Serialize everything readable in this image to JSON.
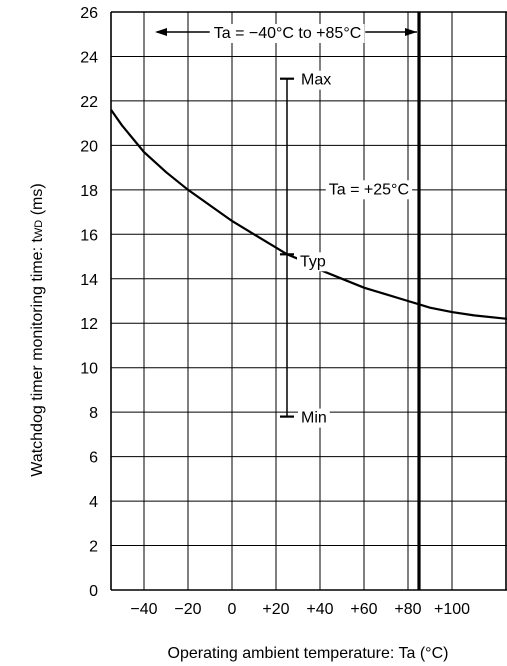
{
  "chart_data": {
    "type": "line",
    "title": "",
    "xlabel": "Operating ambient temperature: Ta (°C)",
    "ylabel_main": "Watchdog timer monitoring time: t",
    "ylabel_sub": "WD",
    "ylabel_unit": " (ms)",
    "xlim": [
      -55,
      125
    ],
    "ylim": [
      0,
      26
    ],
    "grid": true,
    "x_ticks": [
      {
        "value": -40,
        "label": "−40"
      },
      {
        "value": -20,
        "label": "−20"
      },
      {
        "value": 0,
        "label": "0"
      },
      {
        "value": 20,
        "label": "+20"
      },
      {
        "value": 40,
        "label": "+40"
      },
      {
        "value": 60,
        "label": "+60"
      },
      {
        "value": 80,
        "label": "+80"
      },
      {
        "value": 100,
        "label": "+100"
      }
    ],
    "y_ticks": [
      {
        "value": 0,
        "label": "0"
      },
      {
        "value": 2,
        "label": "2"
      },
      {
        "value": 4,
        "label": "4"
      },
      {
        "value": 6,
        "label": "6"
      },
      {
        "value": 8,
        "label": "8"
      },
      {
        "value": 10,
        "label": "10"
      },
      {
        "value": 12,
        "label": "12"
      },
      {
        "value": 14,
        "label": "14"
      },
      {
        "value": 16,
        "label": "16"
      },
      {
        "value": 18,
        "label": "18"
      },
      {
        "value": 20,
        "label": "20"
      },
      {
        "value": 22,
        "label": "22"
      },
      {
        "value": 24,
        "label": "24"
      },
      {
        "value": 26,
        "label": "26"
      }
    ],
    "series": [
      {
        "x": [
          -55,
          -50,
          -40,
          -30,
          -20,
          -10,
          0,
          10,
          20,
          25,
          30,
          40,
          50,
          60,
          70,
          80,
          85,
          90,
          100,
          110,
          125
        ],
        "y": [
          21.6,
          20.9,
          19.7,
          18.8,
          18.0,
          17.3,
          16.6,
          16.0,
          15.4,
          15.1,
          14.9,
          14.4,
          14.0,
          13.6,
          13.3,
          13.0,
          12.85,
          12.7,
          12.5,
          12.35,
          12.2
        ]
      }
    ],
    "limit_line_x": 85,
    "spec_bar": {
      "x": 25,
      "max": 23.0,
      "typ": 15.1,
      "min": 7.8
    },
    "annotations": {
      "range": "Ta = −40°C to +85°C",
      "temp_point": "Ta = +25°C",
      "max": "Max",
      "typ": "Typ",
      "min": "Min"
    }
  }
}
